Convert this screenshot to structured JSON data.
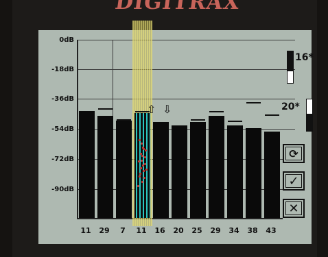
{
  "brand": {
    "logo_text": "DIGITRAX"
  },
  "y_axis": {
    "labels": [
      "0dB",
      "-18dB",
      "-36dB",
      "-54dB",
      "-72dB",
      "-90dB"
    ]
  },
  "chart_data": {
    "type": "bar",
    "categories": [
      "11",
      "29",
      "7",
      "11",
      "16",
      "20",
      "25",
      "29",
      "34",
      "38",
      "43"
    ],
    "values": [
      -46,
      -49,
      -52,
      -47,
      -53,
      -55,
      -53,
      -49,
      -55,
      -57,
      -59
    ],
    "peaks": [
      null,
      -44,
      -51,
      -46,
      null,
      null,
      -51,
      -46,
      -52,
      -40,
      -48
    ],
    "ylim": [
      -96,
      0
    ],
    "ylabel_ticks": [
      "0dB",
      "-18dB",
      "-36dB",
      "-54dB",
      "-72dB",
      "-90dB"
    ],
    "selected_index": 3
  },
  "controls": {
    "top_value": "16*",
    "top_level": 0.62,
    "bottom_value": "20*",
    "bottom_level": 0.55,
    "up_arrow": "⇧",
    "down_arrow": "⇩"
  },
  "buttons": {
    "refresh_glyph": "⟳",
    "confirm_glyph": "✓",
    "cancel_glyph": "✕"
  }
}
